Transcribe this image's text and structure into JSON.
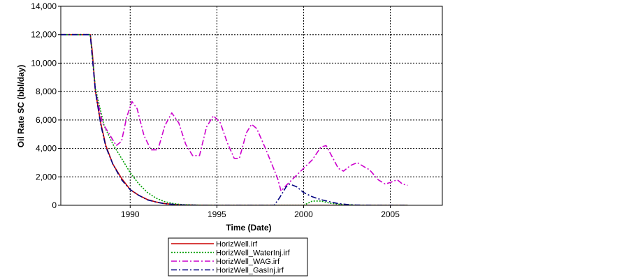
{
  "chart_data": {
    "type": "line",
    "xlabel": "Time (Date)",
    "ylabel": "Oil Rate SC (bbl/day)",
    "xlim": [
      1986,
      2008
    ],
    "ylim": [
      0,
      14000
    ],
    "x_ticks": [
      1990,
      1995,
      2000,
      2005
    ],
    "x_tick_labels": [
      "1990",
      "1995",
      "2000",
      "2005"
    ],
    "y_ticks": [
      0,
      2000,
      4000,
      6000,
      8000,
      10000,
      12000,
      14000
    ],
    "y_tick_labels": [
      "0",
      "2,000",
      "4,000",
      "6,000",
      "8,000",
      "10,000",
      "12,000",
      "14,000"
    ],
    "grid": true,
    "legend_position": "bottom-center",
    "series": [
      {
        "name": "HorizWell.irf",
        "color": "#cc0000",
        "dash": "solid",
        "points": [
          [
            1986,
            12000
          ],
          [
            1987.7,
            12000
          ],
          [
            1987.8,
            11000
          ],
          [
            1988,
            8000
          ],
          [
            1988.3,
            5800
          ],
          [
            1988.6,
            4200
          ],
          [
            1989,
            2900
          ],
          [
            1989.5,
            1900
          ],
          [
            1990,
            1100
          ],
          [
            1990.5,
            700
          ],
          [
            1991,
            400
          ],
          [
            1991.5,
            230
          ],
          [
            1992,
            120
          ],
          [
            1992.5,
            60
          ],
          [
            1993,
            30
          ],
          [
            1994,
            10
          ],
          [
            1995,
            0
          ],
          [
            2006,
            0
          ]
        ]
      },
      {
        "name": "HorizWell_WaterInj.irf",
        "color": "#00a000",
        "dash": "dotted",
        "points": [
          [
            1986,
            12000
          ],
          [
            1987.7,
            12000
          ],
          [
            1988,
            8200
          ],
          [
            1988.5,
            5600
          ],
          [
            1989,
            4300
          ],
          [
            1989.5,
            3300
          ],
          [
            1990,
            2300
          ],
          [
            1990.5,
            1500
          ],
          [
            1991,
            900
          ],
          [
            1991.5,
            500
          ],
          [
            1992,
            250
          ],
          [
            1992.5,
            120
          ],
          [
            1993,
            50
          ],
          [
            1994,
            10
          ],
          [
            1995,
            0
          ],
          [
            2000,
            0
          ],
          [
            2000.5,
            300
          ],
          [
            2001,
            300
          ],
          [
            2001.5,
            150
          ],
          [
            2002,
            80
          ],
          [
            2003,
            0
          ],
          [
            2006,
            0
          ]
        ]
      },
      {
        "name": "HorizWell_WAG.irf",
        "color": "#cc00cc",
        "dash": "dashdot",
        "points": [
          [
            1986,
            12000
          ],
          [
            1987.7,
            12000
          ],
          [
            1988,
            8000
          ],
          [
            1988.4,
            5800
          ],
          [
            1988.8,
            5000
          ],
          [
            1989.2,
            4200
          ],
          [
            1989.5,
            4500
          ],
          [
            1989.8,
            6200
          ],
          [
            1990.1,
            7300
          ],
          [
            1990.4,
            6800
          ],
          [
            1990.8,
            4900
          ],
          [
            1991.2,
            3900
          ],
          [
            1991.6,
            3900
          ],
          [
            1992,
            5600
          ],
          [
            1992.4,
            6500
          ],
          [
            1992.8,
            5800
          ],
          [
            1993.2,
            4300
          ],
          [
            1993.6,
            3500
          ],
          [
            1994,
            3500
          ],
          [
            1994.4,
            5500
          ],
          [
            1994.8,
            6300
          ],
          [
            1995.2,
            5800
          ],
          [
            1995.6,
            4400
          ],
          [
            1996,
            3300
          ],
          [
            1996.3,
            3300
          ],
          [
            1996.7,
            5100
          ],
          [
            1997,
            5700
          ],
          [
            1997.3,
            5400
          ],
          [
            1997.8,
            4000
          ],
          [
            1998.2,
            2800
          ],
          [
            1998.5,
            1900
          ],
          [
            1998.7,
            1000
          ],
          [
            1999,
            1400
          ],
          [
            1999.5,
            2000
          ],
          [
            2000,
            2600
          ],
          [
            2000.5,
            3200
          ],
          [
            2001,
            4100
          ],
          [
            2001.3,
            4200
          ],
          [
            2001.7,
            3300
          ],
          [
            2002,
            2600
          ],
          [
            2002.3,
            2400
          ],
          [
            2002.7,
            2800
          ],
          [
            2003.1,
            3000
          ],
          [
            2003.5,
            2700
          ],
          [
            2003.8,
            2500
          ],
          [
            2004.3,
            1800
          ],
          [
            2004.7,
            1500
          ],
          [
            2005,
            1600
          ],
          [
            2005.4,
            1800
          ],
          [
            2005.7,
            1500
          ],
          [
            2006,
            1400
          ]
        ]
      },
      {
        "name": "HorizWell_GasInj.irf",
        "color": "#000080",
        "dash": "dashdot",
        "points": [
          [
            1986,
            12000
          ],
          [
            1987.7,
            12000
          ],
          [
            1988,
            8000
          ],
          [
            1988.3,
            5700
          ],
          [
            1988.6,
            4100
          ],
          [
            1989,
            2900
          ],
          [
            1989.5,
            1800
          ],
          [
            1990,
            1100
          ],
          [
            1990.5,
            700
          ],
          [
            1991,
            380
          ],
          [
            1991.5,
            220
          ],
          [
            1992,
            110
          ],
          [
            1993,
            30
          ],
          [
            1994,
            0
          ],
          [
            1998.3,
            0
          ],
          [
            1998.6,
            500
          ],
          [
            1999,
            1300
          ],
          [
            1999.2,
            1500
          ],
          [
            1999.6,
            1300
          ],
          [
            2000,
            900
          ],
          [
            2000.5,
            600
          ],
          [
            2001,
            400
          ],
          [
            2001.5,
            250
          ],
          [
            2002,
            120
          ],
          [
            2002.5,
            60
          ],
          [
            2003,
            20
          ],
          [
            2004,
            0
          ],
          [
            2006,
            0
          ]
        ]
      }
    ]
  }
}
